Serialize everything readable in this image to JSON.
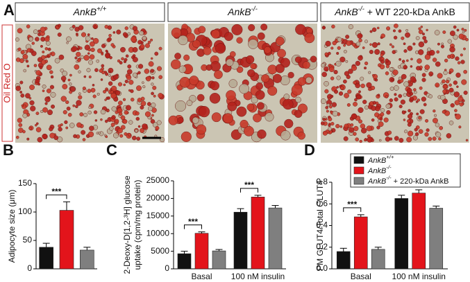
{
  "figure": {
    "panel_labels": [
      "A",
      "B",
      "C",
      "D"
    ],
    "image_headers": [
      "AnkB+/+",
      "AnkB-/-",
      "AnkB-/- + WT 220-kDa AnkB"
    ],
    "stain_label": "Oil Red O"
  },
  "chart_data": [
    {
      "type": "bar",
      "ylabel": [
        "Adipocyte size (μm)"
      ],
      "categories": [
        null,
        null,
        null
      ],
      "values": [
        38,
        103,
        33
      ],
      "errors": [
        7,
        15,
        5
      ],
      "colors": [
        "#111111",
        "#e3141b",
        "#7f7f7f"
      ],
      "ylim": [
        0,
        150
      ],
      "yticks": [
        0,
        50,
        100,
        150
      ],
      "annotations": [
        {
          "text": "***",
          "category": 0,
          "series": [
            0,
            1
          ]
        }
      ]
    },
    {
      "type": "grouped-bar",
      "ylabel": [
        "2-Deoxy-D[1,2-³H] glucose",
        "uptake (cpm/mg protein)"
      ],
      "categories": [
        "Basal",
        "100 nM insulin"
      ],
      "series": [
        {
          "name": "AnkB+/+",
          "color": "#111111",
          "values": [
            4300,
            16100
          ],
          "errors": [
            700,
            1000
          ]
        },
        {
          "name": "AnkB-/-",
          "color": "#e3141b",
          "values": [
            10100,
            20400
          ],
          "errors": [
            400,
            500
          ]
        },
        {
          "name": "AnkB-/- + WT 220-kDa AnkB",
          "color": "#7f7f7f",
          "values": [
            5100,
            17300
          ],
          "errors": [
            400,
            700
          ]
        }
      ],
      "legend": false,
      "ylim": [
        0,
        25000
      ],
      "yticks": [
        0,
        5000,
        10000,
        15000,
        20000,
        25000
      ],
      "annotations": [
        {
          "text": "***",
          "category": 0,
          "series": [
            0,
            1
          ]
        },
        {
          "text": "***",
          "category": 1,
          "series": [
            0,
            1
          ]
        }
      ]
    },
    {
      "type": "grouped-bar",
      "ylabel": [
        "PM GLUT4/Total GLUT4"
      ],
      "categories": [
        "Basal",
        "100 nM insulin"
      ],
      "series": [
        {
          "name": "AnkB+/+",
          "color": "#111111",
          "values": [
            0.16,
            0.65
          ],
          "errors": [
            0.03,
            0.03
          ]
        },
        {
          "name": "AnkB-/-",
          "color": "#e3141b",
          "values": [
            0.48,
            0.7
          ],
          "errors": [
            0.02,
            0.03
          ]
        },
        {
          "name": "AnkB-/- + 220-kDa AnkB",
          "color": "#7f7f7f",
          "values": [
            0.18,
            0.56
          ],
          "errors": [
            0.02,
            0.02
          ]
        }
      ],
      "legend": true,
      "ylim": [
        0,
        0.8
      ],
      "yticks": [
        {
          "value": 0,
          "label": "0.0"
        },
        0.2,
        0.4,
        0.6,
        0.8
      ],
      "annotations": [
        {
          "text": "***",
          "category": 0,
          "series": [
            0,
            1
          ]
        }
      ]
    }
  ]
}
